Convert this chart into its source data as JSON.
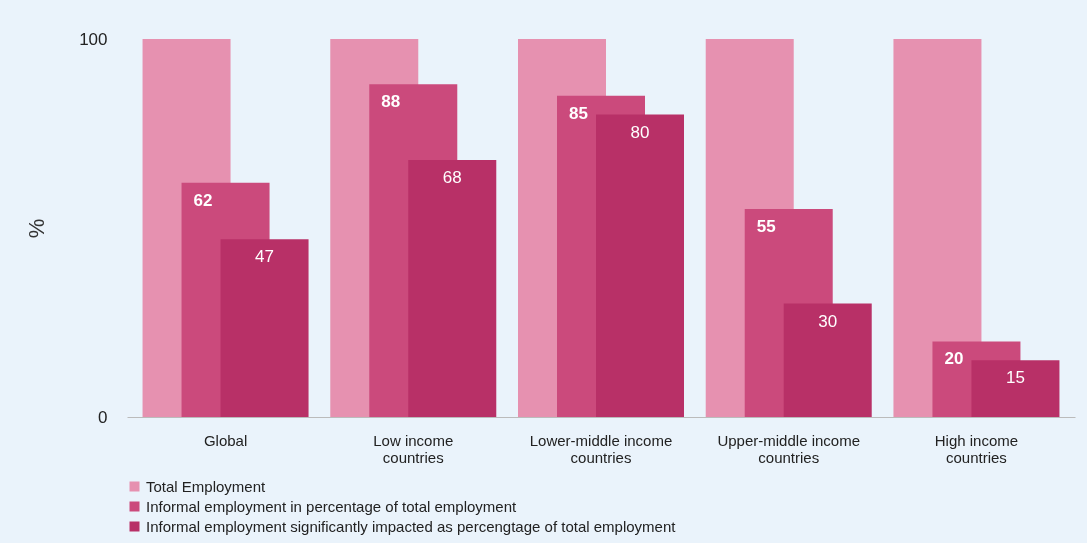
{
  "chart_data": {
    "type": "bar",
    "ylabel": "%",
    "categories": [
      "Global",
      "Low income countries",
      "Lower-middle income countries",
      "Upper-middle income countries",
      "High income countries"
    ],
    "series": [
      {
        "name": "Total Employment",
        "color": "#e691b0",
        "values": [
          100,
          100,
          100,
          100,
          100
        ]
      },
      {
        "name": "Informal employment in percentage of total employment",
        "color": "#cb4a7c",
        "values": [
          62,
          88,
          85,
          55,
          20
        ],
        "value_labels": [
          "62",
          "88",
          "85",
          "55",
          "20"
        ]
      },
      {
        "name": "Informal employment significantly impacted as percengtage of total employment",
        "color": "#b83067",
        "values": [
          47,
          68,
          80,
          30,
          15
        ],
        "value_labels": [
          "47",
          "68",
          "80",
          "30",
          "15"
        ]
      }
    ],
    "ylim": [
      0,
      100
    ],
    "yticks": [
      0,
      100
    ],
    "grid": false,
    "legend": "bottom left"
  }
}
